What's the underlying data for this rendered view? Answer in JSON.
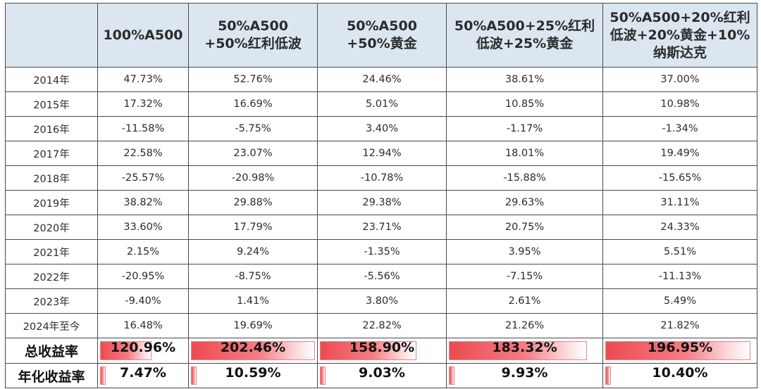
{
  "table": {
    "headers": [
      "",
      [
        "100%A500"
      ],
      [
        "50%A500",
        "+50%红利低波"
      ],
      [
        "50%A500",
        "+50%黄金"
      ],
      [
        "50%A500+25%红利",
        "低波+25%黄金"
      ],
      [
        "50%A500+20%红利",
        "低波+20%黄金+10%",
        "纳斯达克"
      ]
    ],
    "rows": [
      {
        "year": "2014年",
        "values": [
          "47.73%",
          "52.76%",
          "24.46%",
          "38.61%",
          "37.00%"
        ]
      },
      {
        "year": "2015年",
        "values": [
          "17.32%",
          "16.69%",
          "5.01%",
          "10.85%",
          "10.98%"
        ]
      },
      {
        "year": "2016年",
        "values": [
          "-11.58%",
          "-5.75%",
          "3.40%",
          "-1.17%",
          "-1.34%"
        ]
      },
      {
        "year": "2017年",
        "values": [
          "22.58%",
          "23.07%",
          "12.94%",
          "18.01%",
          "19.49%"
        ]
      },
      {
        "year": "2018年",
        "values": [
          "-25.57%",
          "-20.98%",
          "-10.78%",
          "-15.88%",
          "-15.65%"
        ]
      },
      {
        "year": "2019年",
        "values": [
          "38.82%",
          "29.88%",
          "29.38%",
          "29.63%",
          "31.11%"
        ]
      },
      {
        "year": "2020年",
        "values": [
          "33.60%",
          "17.79%",
          "23.71%",
          "20.75%",
          "24.33%"
        ]
      },
      {
        "year": "2021年",
        "values": [
          "2.15%",
          "9.24%",
          "-1.35%",
          "3.95%",
          "5.51%"
        ]
      },
      {
        "year": "2022年",
        "values": [
          "-20.95%",
          "-8.75%",
          "-5.56%",
          "-7.15%",
          "-11.13%"
        ]
      },
      {
        "year": "2023年",
        "values": [
          "-9.40%",
          "1.41%",
          "3.80%",
          "2.61%",
          "5.49%"
        ]
      },
      {
        "year": "2024年至今",
        "values": [
          "16.48%",
          "19.69%",
          "22.82%",
          "21.26%",
          "21.82%"
        ]
      }
    ],
    "total_row": {
      "label": "总收益率",
      "values": [
        "120.96%",
        "202.46%",
        "158.90%",
        "183.32%",
        "196.95%"
      ],
      "bar_fraction": [
        0.6,
        1.0,
        0.78,
        0.91,
        0.97
      ]
    },
    "annual_row": {
      "label": "年化收益率",
      "values": [
        "7.47%",
        "10.59%",
        "9.03%",
        "9.93%",
        "10.40%"
      ],
      "bar_fraction": [
        0.05,
        0.06,
        0.05,
        0.05,
        0.05
      ]
    }
  },
  "colors": {
    "header_bg": "#dce6f1",
    "bar_red": "#ee4a52"
  }
}
